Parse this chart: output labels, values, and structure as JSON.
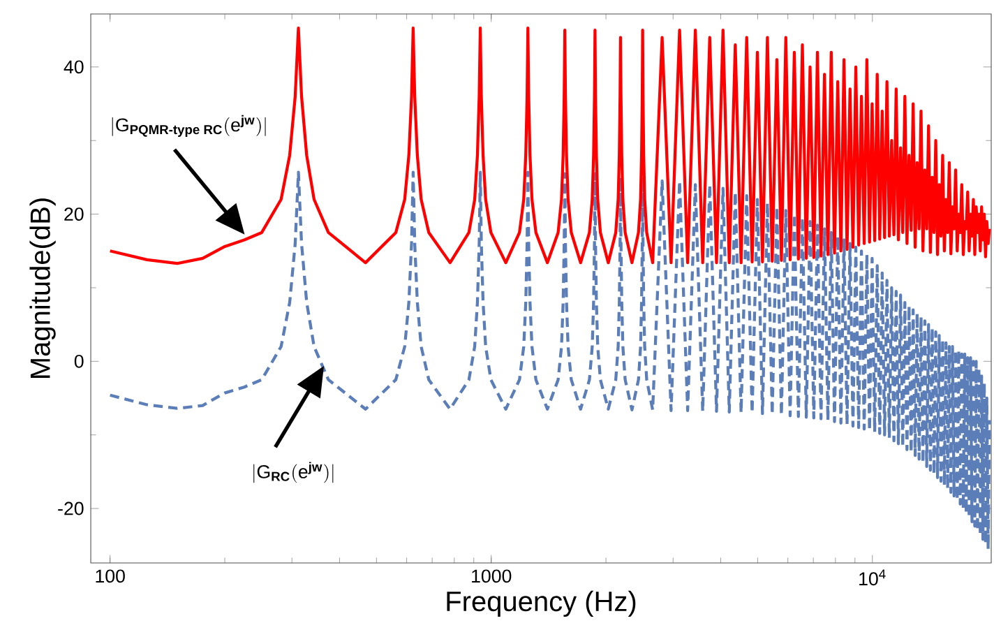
{
  "chart_data": {
    "type": "line",
    "xlabel": "Frequency (Hz)",
    "ylabel": "Magnitude(dB)",
    "log": "x",
    "xlim": [
      89,
      20500
    ],
    "ylim": [
      -27.4,
      47.2
    ],
    "xticks": [
      100,
      1000,
      {
        "value": 10000,
        "label": "10$^{4}$"
      }
    ],
    "yticks": [
      -20,
      0,
      20,
      40
    ],
    "x": [
      100,
      125,
      150,
      175,
      200,
      225,
      250,
      281,
      296,
      306,
      312,
      318,
      328,
      343,
      374,
      468,
      562,
      593,
      608,
      618,
      624,
      630,
      640,
      655,
      686,
      780,
      874,
      905,
      920,
      930,
      936,
      942,
      952,
      967,
      998,
      1092,
      1186,
      1217,
      1232,
      1242,
      1248,
      1254,
      1264,
      1279,
      1310,
      1404,
      1498,
      1529,
      1544,
      1554,
      1560,
      1566,
      1576,
      1591,
      1622,
      1716,
      1810,
      1841,
      1856,
      1866,
      1872,
      1878,
      1888,
      1903,
      1934,
      2028,
      2122,
      2153,
      2168,
      2178,
      2184,
      2190,
      2200,
      2215,
      2246,
      2340,
      2434,
      2465,
      2480,
      2490,
      2496,
      2502,
      2512,
      2527,
      2558,
      2652,
      2808,
      2964,
      3120,
      3276,
      3432,
      3588,
      3744,
      3900,
      4056,
      4212,
      4368,
      4524,
      4680,
      4836,
      4992,
      5148,
      5304,
      5460,
      5616,
      5772,
      5928,
      6084,
      6240,
      6396,
      6552,
      6708,
      6864,
      7020,
      7176,
      7332,
      7488,
      7644,
      7800,
      7956,
      8112,
      8268,
      8424,
      8580,
      8736,
      8892,
      9048,
      9204,
      9360,
      9516,
      9672,
      9828,
      9984,
      10140,
      10296,
      10452,
      10608,
      10764,
      10920,
      11076,
      11232,
      11388,
      11544,
      11700,
      11856,
      12012,
      12168,
      12324,
      12480,
      12636,
      12792,
      12948,
      13104,
      13260,
      13416,
      13572,
      13728,
      13884,
      14040,
      14196,
      14352,
      14508,
      14664,
      14820,
      14976,
      15132,
      15288,
      15444,
      15600,
      15756,
      15912,
      16068,
      16224,
      16380,
      16536,
      16692,
      16848,
      17004,
      17160,
      17316,
      17472,
      17628,
      17784,
      17940,
      18096,
      18252,
      18408,
      18564,
      18720,
      18876,
      19032,
      19188,
      19344,
      19500,
      19656,
      19812,
      19968,
      20124,
      20280
    ],
    "series": [
      {
        "color": "#5b7db8",
        "line_style": "dashed",
        "values": [
          -4.6,
          -5.9,
          -6.4,
          -6,
          -4.3,
          -3.5,
          -2.5,
          2,
          8,
          16,
          25.7,
          16,
          8,
          2,
          -2.5,
          -6.5,
          -2.5,
          2,
          8,
          16,
          25.7,
          16,
          8,
          2,
          -2.5,
          -6.5,
          -2.5,
          2,
          8,
          16,
          25.7,
          16,
          8,
          2,
          -2.5,
          -6.5,
          -2.5,
          2,
          8,
          16,
          25.7,
          16,
          8,
          2,
          -2.5,
          -6.5,
          -2.5,
          2,
          8,
          16,
          25.5,
          16,
          8,
          2,
          -2.5,
          -6.5,
          -2.5,
          2,
          8,
          16,
          25.5,
          16,
          8,
          2,
          -2.5,
          -6.5,
          -2.5,
          2,
          8,
          16,
          25,
          16,
          8,
          2,
          -2.5,
          -6.6,
          -2.5,
          2,
          8,
          16,
          25,
          16,
          8,
          2,
          -2.5,
          -6.6,
          24.5,
          -6.7,
          24.5,
          -6.7,
          24,
          -6.8,
          24,
          -6.8,
          23.5,
          -6.9,
          23,
          -7,
          22.5,
          -7,
          22,
          -7.1,
          21.5,
          -7.2,
          21,
          -7.3,
          20.5,
          -7.4,
          20,
          -7.5,
          19.5,
          -7.6,
          19,
          -7.7,
          18.5,
          -7.8,
          18,
          -8,
          17.5,
          -8.2,
          17,
          -8.4,
          16.5,
          -8.6,
          16,
          -8.8,
          15.5,
          -9,
          15,
          -9.2,
          14.5,
          -9.4,
          14,
          -9.6,
          13,
          -9.8,
          12,
          -10,
          11,
          -10.4,
          10,
          -10.8,
          9.5,
          -11.2,
          9,
          -11.6,
          8,
          -12,
          7.5,
          -12.4,
          7,
          -12.8,
          6.5,
          -13.3,
          6,
          -13.8,
          5.5,
          -14.3,
          5,
          -14.8,
          4.5,
          -15.3,
          4,
          -15.8,
          3.5,
          -16.3,
          3,
          -16.8,
          2.5,
          -17.3,
          2,
          -17.8,
          2,
          -18.3,
          1.5,
          -18.8,
          1.5,
          -19.4,
          1,
          -20,
          1,
          -20.6,
          0.5,
          -21.2,
          0.5,
          -21.8,
          0,
          -22.4,
          0,
          -23,
          -1,
          -23.6,
          -2,
          -24.2,
          -3,
          -24.8,
          -5,
          -25.5,
          -8
        ]
      },
      {
        "color": "#ff0000",
        "line_style": "solid",
        "values": [
          15,
          13.8,
          13.3,
          14,
          15.6,
          16.5,
          17.5,
          22,
          28,
          36,
          45.3,
          36,
          28,
          22,
          17.5,
          13.4,
          17.5,
          22,
          28,
          36,
          45.3,
          36,
          28,
          22,
          17.5,
          13.4,
          17.5,
          22,
          28,
          36,
          45.3,
          36,
          28,
          22,
          17.5,
          13.4,
          17.5,
          22,
          28,
          36,
          45.3,
          36,
          28,
          22,
          17.5,
          13.4,
          17.5,
          22,
          28,
          36,
          45,
          36,
          28,
          22,
          17.5,
          13.4,
          17.5,
          22,
          28,
          36,
          45,
          36,
          28,
          22,
          17.5,
          13.4,
          17.5,
          22,
          28,
          36,
          44,
          36,
          28,
          22,
          17.5,
          13.4,
          17.5,
          22,
          28,
          36,
          45,
          36,
          28,
          22,
          17.5,
          13.4,
          44,
          13.4,
          45,
          13.4,
          45,
          13.4,
          44,
          13.4,
          45,
          13.4,
          43,
          13.4,
          44,
          13.5,
          42,
          13.5,
          44,
          13.6,
          41,
          13.7,
          44,
          13.8,
          42,
          13.9,
          43,
          14,
          40,
          14.1,
          42,
          14.3,
          39,
          14.5,
          42,
          14.7,
          38,
          15,
          41,
          15.2,
          37,
          15.5,
          40,
          15.8,
          36,
          16,
          41,
          16.2,
          35,
          16.4,
          39,
          16.6,
          34,
          16.8,
          38,
          17,
          30,
          17.2,
          37,
          16.5,
          29,
          17.5,
          36,
          16,
          28,
          17.8,
          35,
          15.5,
          27,
          18,
          34,
          15,
          26,
          18,
          32,
          14.8,
          25,
          17.5,
          30,
          14.5,
          24,
          17,
          28,
          15,
          22,
          17.5,
          27,
          14.6,
          21,
          18,
          26,
          15,
          20,
          17.5,
          24,
          14.5,
          19,
          18,
          23,
          15,
          20,
          17,
          22,
          14.5,
          21,
          17.5,
          20,
          15,
          21,
          16.5,
          20,
          14.2,
          19,
          16,
          18
        ]
      }
    ],
    "annotations": [
      "|\\mathrm{G}_{\\textbf{PQMR-type RC}}(\\mathrm{e}^{\\textbf{jw}})|",
      "|\\mathrm{G}_{\\textbf{RC}}(\\mathrm{e}^{\\textbf{jw}})|"
    ]
  }
}
